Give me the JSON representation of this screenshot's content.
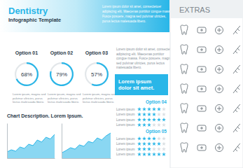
{
  "header": {
    "title": "Dentistry",
    "subtitle": "Infographic Template",
    "text": [
      "Lorem ipsum dolor sit amet, consectetuer",
      "adipiscing elit. Maecenas porttitor congue massa.",
      "Fusce posuere, magna sed pulvinar ultricies,",
      "purus lectus malesuada libero."
    ]
  },
  "side": {
    "text": [
      "Lorem ipsum dolor sit amet, consectetuer",
      "adipiscing elit. Maecenas porttitor",
      "congue massa. Fusce posuere, magna",
      "sed pulvinar ultricies, purus lectus",
      "malesuada libero."
    ],
    "highlight": [
      "Lorem ipsum",
      "dolor sit amet."
    ]
  },
  "chart_section": {
    "title": "Chart Description. Lorem Ipsum."
  },
  "ratings": [
    {
      "title": "Option 04",
      "max": 6,
      "labels": [
        "Lorem ipsum",
        "Lorem ipsum",
        "Lorem ipsum",
        "Lorem ipsum"
      ],
      "values": [
        5,
        4,
        6,
        3
      ]
    },
    {
      "title": "Option 05",
      "max": 6,
      "labels": [
        "Lorem ipsum",
        "Lorem ipsum",
        "Lorem ipsum",
        "Lorem ipsum"
      ],
      "values": [
        4,
        5,
        3,
        6
      ]
    }
  ],
  "extras": {
    "title": "EXTRAS"
  },
  "chart_data": [
    {
      "type": "donut",
      "title": "Option 01",
      "values": [
        68
      ],
      "value_labels": [
        "68%"
      ],
      "ylim": [
        0,
        100
      ],
      "color": "#29b6e8",
      "annotations": [
        "Lorem ipsum, magna sed",
        "pulvinar ultricies, purus",
        "lectus malesuada libero."
      ]
    },
    {
      "type": "donut",
      "title": "Option 02",
      "values": [
        79
      ],
      "value_labels": [
        "79%"
      ],
      "ylim": [
        0,
        100
      ],
      "color": "#29b6e8",
      "annotations": [
        "Lorem ipsum, magna sed",
        "pulvinar ultricies, purus",
        "lectus malesuada libero."
      ]
    },
    {
      "type": "donut",
      "title": "Option 03",
      "values": [
        57
      ],
      "value_labels": [
        "57%"
      ],
      "ylim": [
        0,
        100
      ],
      "color": "#29b6e8",
      "annotations": [
        "Lorem ipsum, magna sed",
        "pulvinar ultricies, purus",
        "lectus malesuada libero."
      ]
    },
    {
      "type": "area",
      "values": [
        18,
        24,
        20,
        32,
        28,
        40,
        36,
        52,
        46,
        60,
        55,
        68
      ],
      "ylim": [
        0,
        100
      ],
      "color": "#29b6e8",
      "tick_labels": false
    },
    {
      "type": "area",
      "values": [
        15,
        22,
        30,
        26,
        38,
        34,
        48,
        44,
        58,
        52,
        64,
        72
      ],
      "ylim": [
        0,
        100
      ],
      "color": "#29b6e8",
      "tick_labels": false
    }
  ]
}
